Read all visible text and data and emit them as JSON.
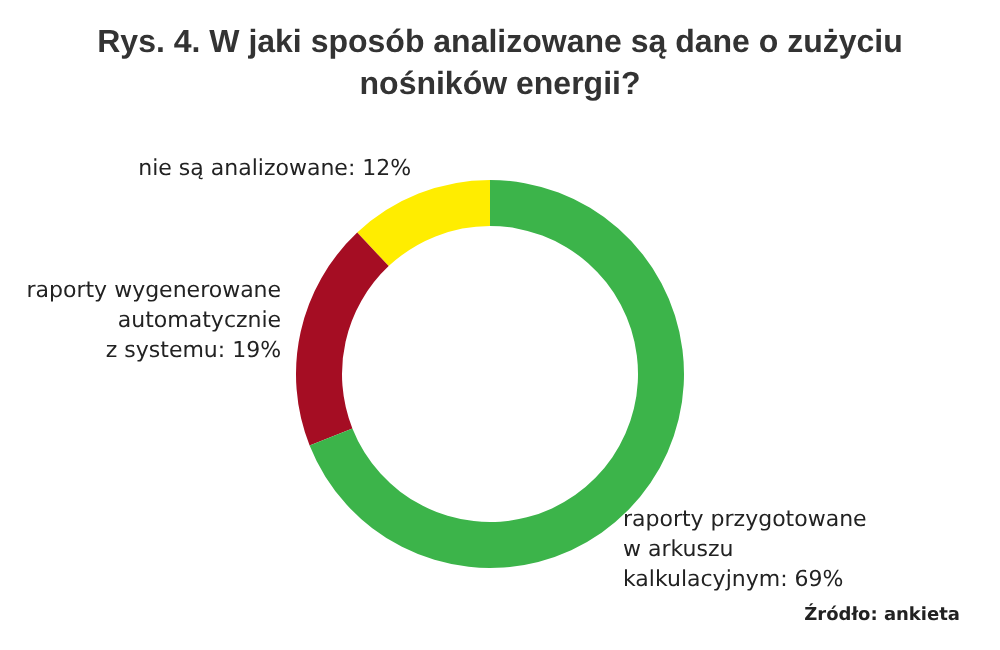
{
  "chart_data": {
    "type": "donut",
    "title": "Rys. 4. W jaki sposób analizowane są dane o zużyciu nośników energii?",
    "categories": [
      "nie są analizowane",
      "raporty wygenerowane\nautomatycznie\nz systemu",
      "raporty przygotowane\nw arkuszu\nkalkulacyjnym"
    ],
    "values": [
      12,
      19,
      69
    ],
    "value_labels": [
      "12%",
      "19%",
      "69%"
    ],
    "colors": [
      "#ffed00",
      "#a50d23",
      "#3cb44a"
    ],
    "annotations": [
      "Źródło: ankieta"
    ]
  }
}
